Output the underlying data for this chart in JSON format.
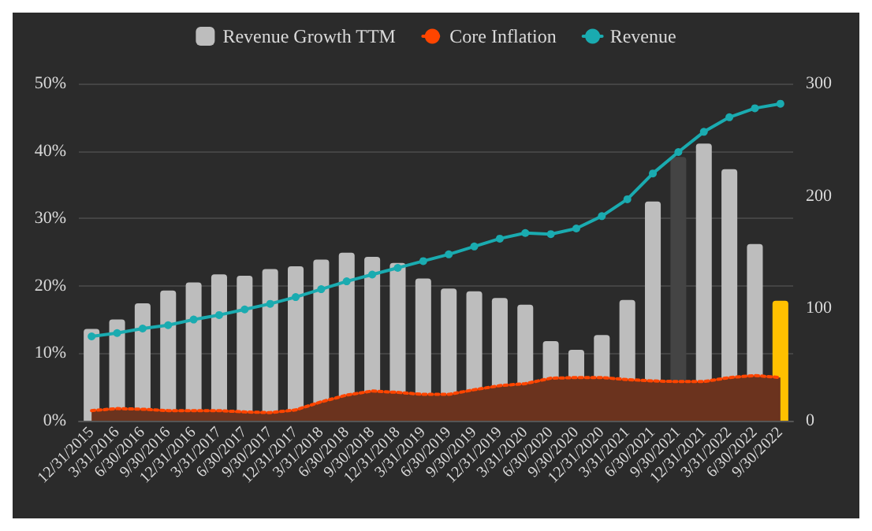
{
  "chart_data": {
    "type": "bar",
    "categories": [
      "12/31/2015",
      "3/31/2016",
      "6/30/2016",
      "9/30/2016",
      "12/31/2016",
      "3/31/2017",
      "6/30/2017",
      "9/30/2017",
      "12/31/2017",
      "3/31/2018",
      "6/30/2018",
      "9/30/2018",
      "12/31/2018",
      "3/31/2019",
      "6/30/2019",
      "9/30/2019",
      "12/31/2019",
      "3/31/2020",
      "6/30/2020",
      "9/30/2020",
      "12/31/2020",
      "3/31/2021",
      "6/30/2021",
      "9/30/2021",
      "12/31/2021",
      "3/31/2022",
      "6/30/2022",
      "9/30/2022"
    ],
    "series": [
      {
        "name": "Revenue Growth TTM",
        "color": "#bdbdbd",
        "colors": [
          "#bdbdbd",
          "#bdbdbd",
          "#bdbdbd",
          "#bdbdbd",
          "#bdbdbd",
          "#bdbdbd",
          "#bdbdbd",
          "#bdbdbd",
          "#bdbdbd",
          "#bdbdbd",
          "#bdbdbd",
          "#bdbdbd",
          "#bdbdbd",
          "#bdbdbd",
          "#bdbdbd",
          "#bdbdbd",
          "#bdbdbd",
          "#bdbdbd",
          "#bdbdbd",
          "#bdbdbd",
          "#bdbdbd",
          "#bdbdbd",
          "#bdbdbd",
          "#444444",
          "#bdbdbd",
          "#bdbdbd",
          "#bdbdbd",
          "#ffc000"
        ],
        "values": [
          13.6,
          15.0,
          17.4,
          19.3,
          20.5,
          21.7,
          21.5,
          22.5,
          22.9,
          23.9,
          24.9,
          24.3,
          23.4,
          21.1,
          19.6,
          19.2,
          18.2,
          17.2,
          11.8,
          10.5,
          12.7,
          17.9,
          32.5,
          39.1,
          41.1,
          37.3,
          26.2,
          17.8
        ]
      },
      {
        "name": "Core Inflation",
        "type": "area",
        "color": "#ff4500",
        "line_style": "dotted",
        "marker": "none",
        "values": [
          1.5,
          1.8,
          1.7,
          1.5,
          1.5,
          1.5,
          1.3,
          1.2,
          1.6,
          2.8,
          3.8,
          4.4,
          4.2,
          3.9,
          3.9,
          4.6,
          5.2,
          5.5,
          6.3,
          6.4,
          6.4,
          6.1,
          5.9,
          5.8,
          5.8,
          6.4,
          6.7,
          6.4
        ]
      },
      {
        "name": "Revenue",
        "type": "line",
        "axis": "y2",
        "color": "#1aabb0",
        "line_style": "solid",
        "marker": "circle",
        "values": [
          75,
          78,
          82,
          85,
          90,
          94,
          99,
          104,
          110,
          117,
          124,
          130,
          136,
          142,
          148,
          155,
          162,
          167,
          166,
          171,
          182,
          197,
          220,
          239,
          257,
          270,
          278,
          282
        ]
      }
    ],
    "ylim": [
      0,
      50
    ],
    "yticks": [
      {
        "value": 0,
        "label": "0%"
      },
      {
        "value": 10,
        "label": "10%"
      },
      {
        "value": 20,
        "label": "20%"
      },
      {
        "value": 30,
        "label": "30%"
      },
      {
        "value": 40,
        "label": "40%"
      },
      {
        "value": 50,
        "label": "50%"
      }
    ],
    "y2lim": [
      0,
      300
    ],
    "y2ticks": [
      0,
      100,
      200,
      300
    ],
    "grid": "y",
    "legend": "top"
  }
}
